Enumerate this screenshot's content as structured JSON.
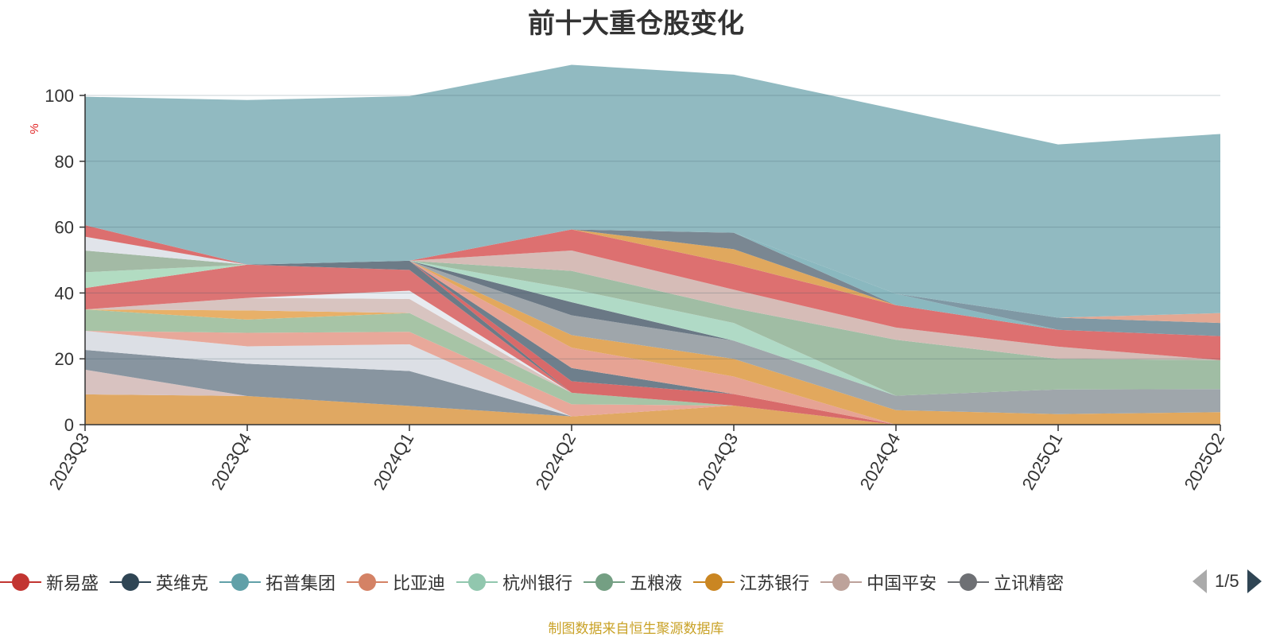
{
  "chart_data": {
    "type": "area",
    "title": "前十大重仓股变化",
    "ylabel": "%",
    "xlabel": "",
    "ylim": [
      0,
      100
    ],
    "yticks": [
      0,
      20,
      40,
      60,
      80,
      100
    ],
    "grid": true,
    "legend_position": "bottom",
    "stacked": true,
    "categories": [
      "2023Q3",
      "2023Q4",
      "2024Q1",
      "2024Q2",
      "2024Q3",
      "2024Q4",
      "2025Q1",
      "2025Q2"
    ],
    "series": [
      {
        "name": "",
        "color": "#e0a862",
        "values": [
          9.2,
          8.7,
          5.7,
          2.5,
          5.8,
          0.0,
          0.0,
          0.0
        ]
      },
      {
        "name": "",
        "color": "#d8c2c0",
        "values": [
          7.5,
          0.0,
          0.0,
          0.0,
          0.0,
          0.0,
          0.0,
          0.0
        ]
      },
      {
        "name": "",
        "color": "#8895a0",
        "values": [
          6.0,
          9.8,
          10.6,
          0.0,
          0.0,
          0.0,
          0.0,
          0.0
        ]
      },
      {
        "name": "",
        "color": "#dcdfe5",
        "values": [
          5.8,
          5.3,
          8.1,
          0.0,
          0.0,
          0.0,
          0.0,
          0.0
        ]
      },
      {
        "name": "",
        "color": "#e8a89a",
        "values": [
          0.0,
          4.1,
          3.8,
          3.7,
          0.0,
          0.0,
          0.0,
          0.0
        ]
      },
      {
        "name": "",
        "color": "#a7c4a6",
        "values": [
          6.5,
          4.0,
          5.7,
          3.5,
          0.0,
          0.0,
          0.0,
          0.0
        ]
      },
      {
        "name": "",
        "color": "#e8b068",
        "values": [
          0.0,
          2.8,
          0.0,
          0.0,
          0.0,
          0.0,
          0.0,
          0.0
        ]
      },
      {
        "name": "",
        "color": "#d8c4c0",
        "values": [
          0.0,
          3.8,
          4.3,
          0.0,
          0.0,
          0.0,
          0.0,
          0.0
        ]
      },
      {
        "name": "",
        "color": "#e8ebf0",
        "values": [
          0.0,
          0.0,
          2.5,
          0.0,
          0.0,
          0.0,
          0.0,
          0.0
        ]
      },
      {
        "name": "",
        "color": "#dc7474",
        "values": [
          6.5,
          10.1,
          6.3,
          0.0,
          0.0,
          0.0,
          0.0,
          0.0
        ]
      },
      {
        "name": "",
        "color": "#b2dcc2",
        "values": [
          4.8,
          0.0,
          0.0,
          0.0,
          0.0,
          0.0,
          0.0,
          0.0
        ]
      },
      {
        "name": "",
        "color": "#a3baa5",
        "values": [
          6.6,
          0.0,
          0.0,
          0.0,
          0.0,
          0.0,
          0.0,
          0.0
        ]
      },
      {
        "name": "",
        "color": "#e1e4ea",
        "values": [
          4.2,
          0.0,
          0.0,
          0.0,
          0.0,
          0.0,
          0.0,
          0.0
        ]
      },
      {
        "name": "",
        "color": "#dc6f6f",
        "values": [
          3.5,
          0.0,
          0.0,
          0.0,
          0.0,
          0.0,
          0.0,
          0.0
        ]
      },
      {
        "name": "",
        "color": "#6c7b87",
        "values": [
          0.0,
          0.0,
          2.8,
          0.0,
          0.0,
          0.0,
          0.0,
          0.0
        ]
      },
      {
        "name": "",
        "color": "#d86a6a",
        "values": [
          0.0,
          0.0,
          0.0,
          3.5,
          3.5,
          0.0,
          0.0,
          0.0
        ]
      },
      {
        "name": "",
        "color": "#6e7f8c",
        "values": [
          0.0,
          0.0,
          0.0,
          4.0,
          0.0,
          0.0,
          0.0,
          0.0
        ]
      },
      {
        "name": "",
        "color": "#e6a394",
        "values": [
          0.0,
          0.0,
          0.0,
          6.2,
          5.3,
          0.0,
          0.0,
          0.0
        ]
      },
      {
        "name": "",
        "color": "#e2a85d",
        "values": [
          0.0,
          0.0,
          0.0,
          3.8,
          5.4,
          4.4,
          3.2,
          3.8
        ]
      },
      {
        "name": "",
        "color": "#9fa6ab",
        "values": [
          0.0,
          0.0,
          0.0,
          6.0,
          5.5,
          4.4,
          7.5,
          7.0
        ]
      },
      {
        "name": "",
        "color": "#6a7885",
        "values": [
          0.0,
          0.0,
          0.0,
          4.0,
          0.0,
          0.0,
          0.0,
          0.0
        ]
      },
      {
        "name": "",
        "color": "#b0dac6",
        "values": [
          0.0,
          0.0,
          0.0,
          4.0,
          5.4,
          0.0,
          0.0,
          0.0
        ]
      },
      {
        "name": "",
        "color": "#a0bda4",
        "values": [
          0.0,
          0.0,
          0.0,
          5.5,
          4.5,
          17.0,
          9.3,
          8.8
        ]
      },
      {
        "name": "",
        "color": "#d6bcb7",
        "values": [
          0.0,
          0.0,
          0.0,
          6.2,
          5.6,
          3.7,
          3.7,
          0.0
        ]
      },
      {
        "name": "",
        "color": "#dd7070",
        "values": [
          0.0,
          0.0,
          0.0,
          6.4,
          7.8,
          6.8,
          5.1,
          7.3
        ]
      },
      {
        "name": "",
        "color": "#e0a85e",
        "values": [
          0.0,
          0.0,
          0.0,
          0.0,
          4.5,
          0.0,
          0.0,
          0.0
        ]
      },
      {
        "name": "",
        "color": "#7a8792",
        "values": [
          0.0,
          0.0,
          0.0,
          0.0,
          5.0,
          0.0,
          0.0,
          0.0
        ]
      },
      {
        "name": "",
        "color": "#8ab8bf",
        "values": [
          0.0,
          0.0,
          0.0,
          0.0,
          0.0,
          3.5,
          0.0,
          0.0
        ]
      },
      {
        "name": "",
        "color": "#7f98a4",
        "values": [
          0.0,
          0.0,
          0.0,
          0.0,
          0.0,
          0.0,
          3.7,
          4.0
        ]
      },
      {
        "name": "",
        "color": "#e3a893",
        "values": [
          0.0,
          0.0,
          0.0,
          0.0,
          0.0,
          0.0,
          0.0,
          3.0
        ]
      },
      {
        "name": "",
        "color": "#91bac1",
        "values": [
          39.0,
          50.0,
          50.0,
          50.0,
          48.0,
          56.0,
          52.6,
          54.4
        ]
      }
    ]
  },
  "legend": {
    "items": [
      {
        "label": "新易盛",
        "color": "#c23531"
      },
      {
        "label": "英维克",
        "color": "#2f4554"
      },
      {
        "label": "拓普集团",
        "color": "#61a0a8"
      },
      {
        "label": "比亚迪",
        "color": "#d48265"
      },
      {
        "label": "杭州银行",
        "color": "#91c7ae"
      },
      {
        "label": "五粮液",
        "color": "#749f83"
      },
      {
        "label": "江苏银行",
        "color": "#ca8622"
      },
      {
        "label": "中国平安",
        "color": "#bda29a"
      },
      {
        "label": "立讯精密",
        "color": "#6e7074"
      }
    ],
    "pager": "1/5"
  },
  "footer": {
    "source": "制图数据来自恒生聚源数据库"
  }
}
